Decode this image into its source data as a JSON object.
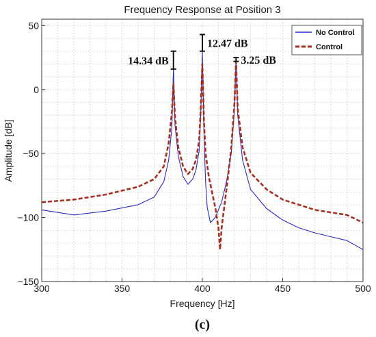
{
  "panel_label": "(c)",
  "chart_data": {
    "type": "line",
    "title": "Frequency Response at Position 3",
    "xlabel": "Frequency [Hz]",
    "ylabel": "Amplitude [dB]",
    "xlim": [
      300,
      500
    ],
    "ylim": [
      -150,
      55
    ],
    "xticks": [
      300,
      350,
      400,
      450,
      500
    ],
    "yticks": [
      -150,
      -100,
      -50,
      0,
      50
    ],
    "grid": true,
    "legend": "top-right",
    "series": [
      {
        "name": "No Control",
        "style": "solid",
        "color": "#2a2ac8",
        "x": [
          300,
          320,
          340,
          360,
          370,
          376,
          379,
          381,
          382,
          383,
          385,
          388,
          391,
          394,
          396,
          398,
          399,
          400,
          401,
          402,
          403,
          405,
          408,
          412,
          415,
          418,
          420,
          421,
          422,
          425,
          430,
          440,
          450,
          460,
          470,
          480,
          490,
          500
        ],
        "y": [
          -94,
          -98,
          -95,
          -90,
          -84,
          -72,
          -55,
          -30,
          18,
          -28,
          -52,
          -68,
          -74,
          -70,
          -63,
          -48,
          -20,
          30,
          -35,
          -72,
          -92,
          -104,
          -100,
          -88,
          -72,
          -50,
          -15,
          25,
          -20,
          -55,
          -78,
          -93,
          -102,
          -108,
          -112,
          -115,
          -118,
          -125
        ]
      },
      {
        "name": "Control",
        "style": "dashed",
        "color": "#a82f1e",
        "x": [
          300,
          320,
          340,
          360,
          370,
          376,
          379,
          381,
          382,
          383,
          385,
          388,
          391,
          394,
          396,
          398,
          399,
          400,
          401,
          402,
          404,
          406,
          408,
          410,
          411,
          412,
          414,
          416,
          418,
          420,
          421,
          422,
          425,
          430,
          440,
          450,
          460,
          470,
          480,
          490,
          500
        ],
        "y": [
          -88,
          -86,
          -82,
          -76,
          -70,
          -60,
          -42,
          -18,
          5,
          -22,
          -45,
          -60,
          -66,
          -62,
          -55,
          -40,
          -15,
          20,
          -25,
          -50,
          -68,
          -80,
          -92,
          -108,
          -125,
          -108,
          -88,
          -68,
          -45,
          -10,
          22,
          -15,
          -45,
          -65,
          -78,
          -86,
          -90,
          -94,
          -96,
          -98,
          -104
        ]
      }
    ],
    "annotations": [
      {
        "text": "14.34 dB",
        "x": 382,
        "y_low": 16,
        "y_high": 30
      },
      {
        "text": "12.47 dB",
        "x": 400,
        "y_low": 30,
        "y_high": 43
      },
      {
        "text": "3.25 dB",
        "x": 421,
        "y_low": 22,
        "y_high": 25
      }
    ]
  }
}
